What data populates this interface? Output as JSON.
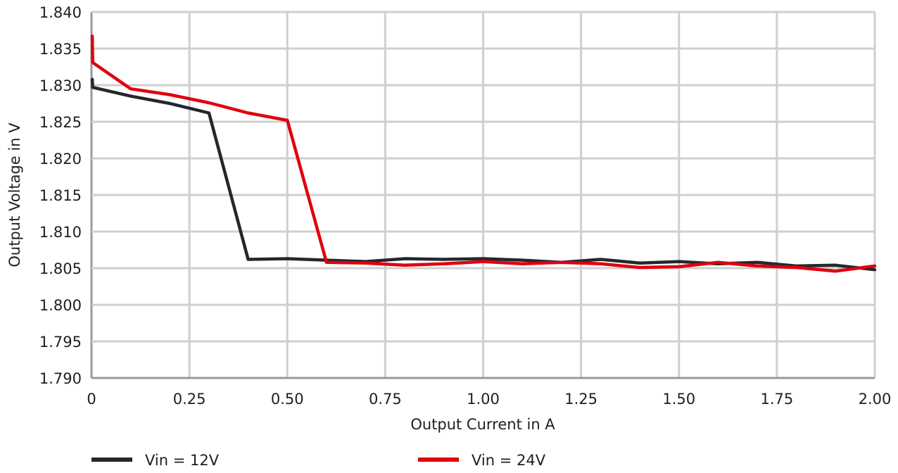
{
  "chart_data": {
    "type": "line",
    "title": "",
    "xlabel": "Output Current in A",
    "ylabel": "Output Voltage in V",
    "xlim": [
      0,
      2.0
    ],
    "ylim": [
      1.79,
      1.84
    ],
    "x_ticks": [
      "0",
      "0.25",
      "0.50",
      "0.75",
      "1.00",
      "1.25",
      "1.50",
      "1.75",
      "2.00"
    ],
    "y_ticks": [
      "1.840",
      "1.835",
      "1.830",
      "1.825",
      "1.820",
      "1.815",
      "1.810",
      "1.805",
      "1.800",
      "1.795",
      "1.790"
    ],
    "grid": true,
    "legend_position": "bottom",
    "series": [
      {
        "name": "Vin = 12V",
        "color": "#23282d",
        "points": [
          [
            0.002,
            1.8308
          ],
          [
            0.003,
            1.8297
          ],
          [
            0.1,
            1.8285
          ],
          [
            0.2,
            1.8275
          ],
          [
            0.3,
            1.8262
          ],
          [
            0.4,
            1.8062
          ],
          [
            0.5,
            1.8063
          ],
          [
            0.6,
            1.8061
          ],
          [
            0.7,
            1.8059
          ],
          [
            0.8,
            1.8063
          ],
          [
            0.9,
            1.8062
          ],
          [
            1.0,
            1.8063
          ],
          [
            1.1,
            1.8061
          ],
          [
            1.2,
            1.8058
          ],
          [
            1.3,
            1.8062
          ],
          [
            1.4,
            1.8057
          ],
          [
            1.5,
            1.8059
          ],
          [
            1.6,
            1.8056
          ],
          [
            1.7,
            1.8058
          ],
          [
            1.8,
            1.8053
          ],
          [
            1.9,
            1.8054
          ],
          [
            2.0,
            1.8048
          ]
        ]
      },
      {
        "name": "Vin = 24V",
        "color": "#e0000e",
        "points": [
          [
            0.002,
            1.8367
          ],
          [
            0.003,
            1.8331
          ],
          [
            0.1,
            1.8295
          ],
          [
            0.2,
            1.8287
          ],
          [
            0.3,
            1.8276
          ],
          [
            0.4,
            1.8262
          ],
          [
            0.5,
            1.8252
          ],
          [
            0.6,
            1.8058
          ],
          [
            0.7,
            1.8057
          ],
          [
            0.8,
            1.8054
          ],
          [
            0.9,
            1.8056
          ],
          [
            1.0,
            1.8059
          ],
          [
            1.1,
            1.8056
          ],
          [
            1.2,
            1.8058
          ],
          [
            1.3,
            1.8056
          ],
          [
            1.4,
            1.8051
          ],
          [
            1.5,
            1.8052
          ],
          [
            1.6,
            1.8058
          ],
          [
            1.7,
            1.8053
          ],
          [
            1.8,
            1.8051
          ],
          [
            1.9,
            1.8046
          ],
          [
            2.0,
            1.8053
          ]
        ]
      }
    ]
  }
}
